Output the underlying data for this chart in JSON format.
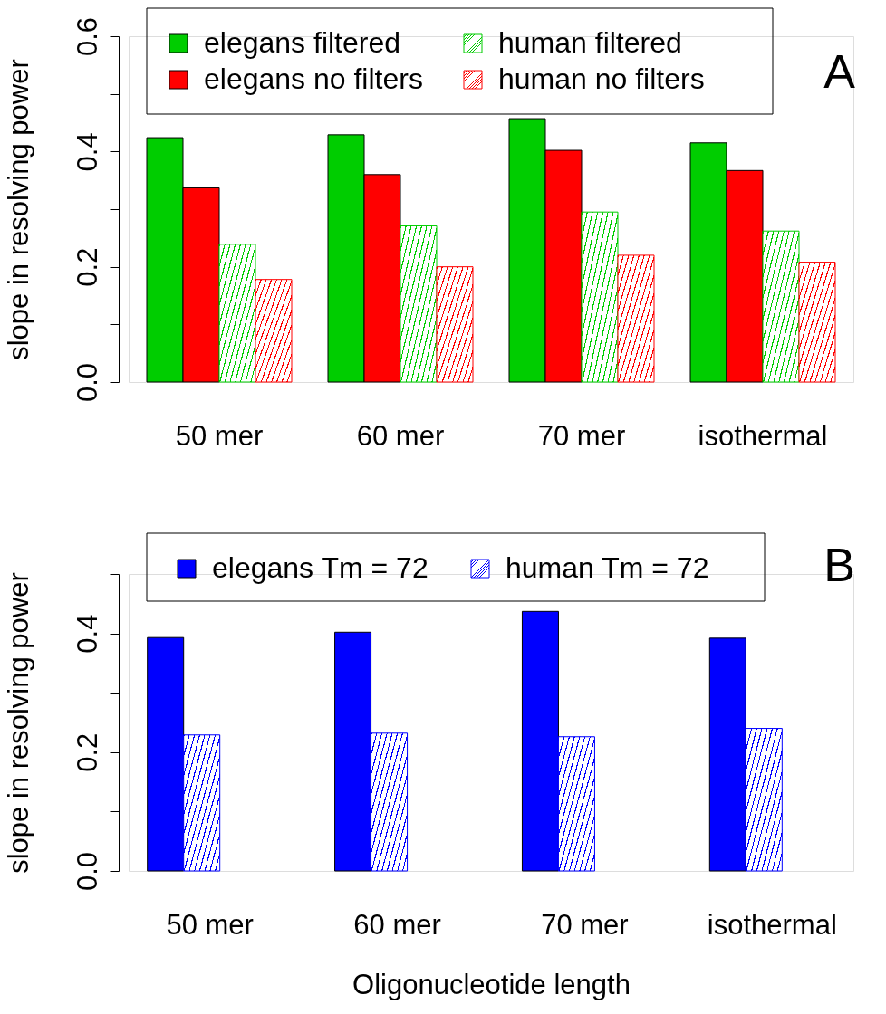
{
  "chart_data": [
    {
      "type": "bar",
      "ylabel": "slope in resolving power",
      "categories": [
        "50 mer",
        "60 mer",
        "70 mer",
        "isothermal"
      ],
      "series": [
        {
          "name": "elegans filtered",
          "color": "#00cd00",
          "values": [
            0.424,
            0.429,
            0.457,
            0.415
          ]
        },
        {
          "name": "elegans no filters",
          "color": "#ff0000",
          "values": [
            0.337,
            0.36,
            0.402,
            0.367
          ]
        },
        {
          "name": "human filtered",
          "color": "#00cd00",
          "values": [
            0.239,
            0.271,
            0.295,
            0.262
          ]
        },
        {
          "name": "human no filters",
          "color": "#ff0000",
          "values": [
            0.178,
            0.2,
            0.22,
            0.208
          ]
        }
      ],
      "ylim": [
        0,
        0.6
      ],
      "yticks": [
        {
          "value": 0,
          "label": "0.0"
        },
        {
          "value": 0.1,
          "label": null
        },
        {
          "value": 0.2,
          "label": "0.2"
        },
        {
          "value": 0.3,
          "label": null
        },
        {
          "value": 0.4,
          "label": "0.4"
        },
        {
          "value": 0.5,
          "label": null
        },
        {
          "value": 0.6,
          "label": "0.6"
        }
      ],
      "legend": "top",
      "annotations": [
        "A"
      ]
    },
    {
      "type": "bar",
      "ylabel": "slope in resolving power",
      "xlabel": "Oligonucleotide length",
      "categories": [
        "50 mer",
        "60 mer",
        "70 mer",
        "isothermal"
      ],
      "series": [
        {
          "name": "elegans Tm = 72",
          "color": "#0000ff",
          "values": [
            0.393,
            0.402,
            0.437,
            0.392
          ]
        },
        {
          "name": "human Tm = 72",
          "color": "#0000ff",
          "values": [
            0.229,
            0.232,
            0.226,
            0.24
          ]
        }
      ],
      "ylim": [
        0,
        0.5
      ],
      "yticks": [
        {
          "value": 0,
          "label": "0.0"
        },
        {
          "value": 0.1,
          "label": null
        },
        {
          "value": 0.2,
          "label": "0.2"
        },
        {
          "value": 0.3,
          "label": null
        },
        {
          "value": 0.4,
          "label": "0.4"
        },
        {
          "value": 0.5,
          "label": null
        }
      ],
      "legend": "top",
      "annotations": [
        "B"
      ]
    }
  ]
}
